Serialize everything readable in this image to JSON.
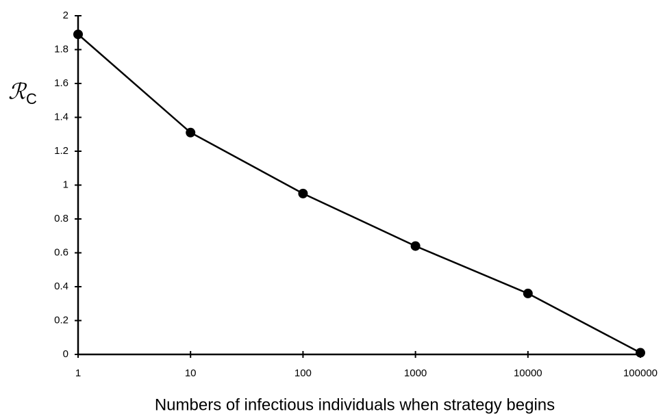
{
  "chart_data": {
    "type": "line",
    "xlabel": "Numbers of infectious individuals when strategy begins",
    "ylabel": "ℛ",
    "ylabel_subscript": "C",
    "x": [
      1,
      10,
      100,
      1000,
      10000,
      100000
    ],
    "series": [
      {
        "name": "ℛC",
        "color": "#000000",
        "values": [
          1.89,
          1.31,
          0.95,
          0.64,
          0.36,
          0.01
        ]
      }
    ],
    "xscale": "log",
    "xlim": [
      1,
      100000
    ],
    "xticks": [
      1,
      10,
      100,
      1000,
      10000,
      100000
    ],
    "ylim": [
      0,
      2
    ],
    "yticks": [
      0,
      0.2,
      0.4,
      0.6,
      0.8,
      1,
      1.2,
      1.4,
      1.6,
      1.8,
      2
    ],
    "grid": false
  }
}
